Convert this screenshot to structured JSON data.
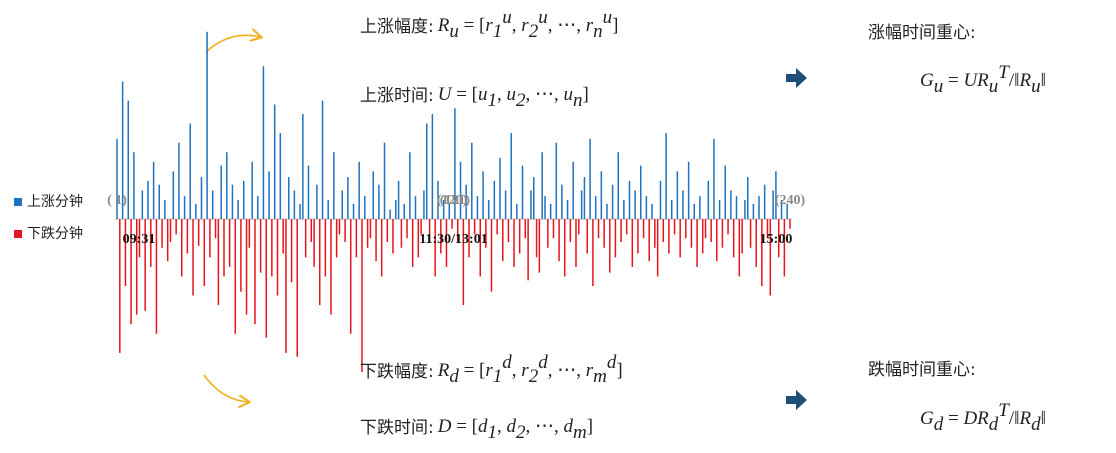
{
  "chart_data": {
    "type": "bar",
    "legend": [
      {
        "name": "上涨分钟",
        "color": "#1f72c0"
      },
      {
        "name": "下跌分钟",
        "color": "#e8141b"
      }
    ],
    "xlim": [
      1,
      240
    ],
    "ylim": [
      -80,
      100
    ],
    "x_labels": [
      {
        "value": 1,
        "label": "09:31"
      },
      {
        "value": 120.5,
        "label": "11:30/13:01"
      },
      {
        "value": 240,
        "label": "15:00"
      }
    ],
    "index_labels": [
      {
        "value": 1,
        "label": "( 1)"
      },
      {
        "value": 120,
        "label": "(120)"
      },
      {
        "value": 121,
        "label": "(121)"
      },
      {
        "value": 240,
        "label": "(240)"
      }
    ],
    "values": [
      42,
      -70,
      72,
      -35,
      62,
      -55,
      35,
      -50,
      -20,
      15,
      -48,
      20,
      -25,
      30,
      -60,
      18,
      -15,
      10,
      -22,
      -12,
      25,
      -8,
      40,
      -30,
      12,
      -18,
      50,
      -40,
      8,
      -14,
      22,
      -35,
      98,
      -20,
      15,
      -10,
      -45,
      28,
      -30,
      35,
      -25,
      18,
      -60,
      10,
      -38,
      20,
      -50,
      -15,
      30,
      -55,
      12,
      -28,
      80,
      -62,
      25,
      -30,
      60,
      -40,
      45,
      -18,
      -70,
      22,
      -33,
      15,
      -72,
      8,
      55,
      -20,
      28,
      -12,
      -25,
      18,
      -45,
      62,
      -30,
      10,
      -50,
      35,
      -20,
      -8,
      15,
      -12,
      22,
      -60,
      8,
      -20,
      30,
      -80,
      12,
      -15,
      -10,
      25,
      -22,
      18,
      -30,
      40,
      -12,
      5,
      -18,
      10,
      20,
      -15,
      8,
      -10,
      35,
      -25,
      12,
      -20,
      -8,
      15,
      50,
      -12,
      55,
      -30,
      20,
      -18,
      10,
      -25,
      8,
      -5,
      58,
      -12,
      30,
      -45,
      18,
      -20,
      40,
      -8,
      12,
      -30,
      25,
      -15,
      10,
      -38,
      20,
      -8,
      32,
      -22,
      15,
      -12,
      45,
      -25,
      8,
      -18,
      28,
      -10,
      -32,
      15,
      22,
      -20,
      -28,
      35,
      12,
      -15,
      8,
      -10,
      40,
      -22,
      18,
      -30,
      10,
      -12,
      30,
      -25,
      -8,
      15,
      22,
      -18,
      42,
      -35,
      12,
      -10,
      25,
      -15,
      8,
      -28,
      18,
      -20,
      35,
      -12,
      10,
      -8,
      20,
      -25,
      15,
      -18,
      28,
      -10,
      12,
      -22,
      8,
      -15,
      -30,
      20,
      -12,
      45,
      -18,
      10,
      -8,
      25,
      -20,
      15,
      -10,
      30,
      -15,
      8,
      -25,
      12,
      -18,
      -10,
      20,
      -12,
      42,
      -22,
      10,
      -15,
      28,
      -8,
      15,
      -20,
      12,
      -30,
      -18,
      10,
      22,
      -15,
      8,
      -25,
      12,
      -35,
      18,
      -10,
      -40,
      15,
      25,
      -20,
      10,
      -30,
      8,
      -5
    ]
  },
  "texts": {
    "up_range": {
      "label": "上涨幅度:",
      "formula": [
        [
          "R",
          "i"
        ],
        [
          "u",
          "sub"
        ],
        [
          " = [",
          ""
        ],
        [
          "r",
          "i"
        ],
        [
          "1",
          "sub"
        ],
        [
          "u",
          "sup"
        ],
        [
          ", ",
          ""
        ],
        [
          "r",
          "i"
        ],
        [
          "2",
          "sub"
        ],
        [
          "u",
          "sup"
        ],
        [
          ", ⋯, ",
          ""
        ],
        [
          "r",
          "i"
        ],
        [
          "n",
          "sub"
        ],
        [
          "u",
          "sup"
        ],
        [
          "]",
          ""
        ]
      ]
    },
    "up_time": {
      "label": "上涨时间:",
      "formula": [
        [
          "U",
          "i"
        ],
        [
          " = [",
          ""
        ],
        [
          "u",
          "i"
        ],
        [
          "1",
          "sub"
        ],
        [
          ", ",
          ""
        ],
        [
          "u",
          "i"
        ],
        [
          "2",
          "sub"
        ],
        [
          ", ⋯, ",
          ""
        ],
        [
          "u",
          "i"
        ],
        [
          "n",
          "sub"
        ],
        [
          "]",
          ""
        ]
      ]
    },
    "up_center": {
      "label": "涨幅时间重心:",
      "formula": [
        [
          "G",
          "i"
        ],
        [
          "u",
          "sub"
        ],
        [
          " = ",
          ""
        ],
        [
          "UR",
          "i"
        ],
        [
          "u",
          "sub"
        ],
        [
          "T",
          "sup"
        ],
        [
          "/‖",
          ""
        ],
        [
          "R",
          "i"
        ],
        [
          "u",
          "sub"
        ],
        [
          "‖",
          ""
        ]
      ]
    },
    "down_range": {
      "label": "下跌幅度:",
      "formula": [
        [
          "R",
          "i"
        ],
        [
          "d",
          "sub"
        ],
        [
          " = [",
          ""
        ],
        [
          "r",
          "i"
        ],
        [
          "1",
          "sub"
        ],
        [
          "d",
          "sup"
        ],
        [
          ", ",
          ""
        ],
        [
          "r",
          "i"
        ],
        [
          "2",
          "sub"
        ],
        [
          "d",
          "sup"
        ],
        [
          ", ⋯, ",
          ""
        ],
        [
          "r",
          "i"
        ],
        [
          "m",
          "sub"
        ],
        [
          "d",
          "sup"
        ],
        [
          "]",
          ""
        ]
      ]
    },
    "down_time": {
      "label": "下跌时间:",
      "formula": [
        [
          "D",
          "i"
        ],
        [
          " = [",
          ""
        ],
        [
          "d",
          "i"
        ],
        [
          "1",
          "sub"
        ],
        [
          ", ",
          ""
        ],
        [
          "d",
          "i"
        ],
        [
          "2",
          "sub"
        ],
        [
          ", ⋯, ",
          ""
        ],
        [
          "d",
          "i"
        ],
        [
          "m",
          "sub"
        ],
        [
          "]",
          ""
        ]
      ]
    },
    "down_center": {
      "label": "跌幅时间重心:",
      "formula": [
        [
          "G",
          "i"
        ],
        [
          "d",
          "sub"
        ],
        [
          " = ",
          ""
        ],
        [
          "DR",
          "i"
        ],
        [
          "d",
          "sub"
        ],
        [
          "T",
          "sup"
        ],
        [
          "/‖",
          ""
        ],
        [
          "R",
          "i"
        ],
        [
          "d",
          "sub"
        ],
        [
          "‖",
          ""
        ]
      ]
    }
  }
}
